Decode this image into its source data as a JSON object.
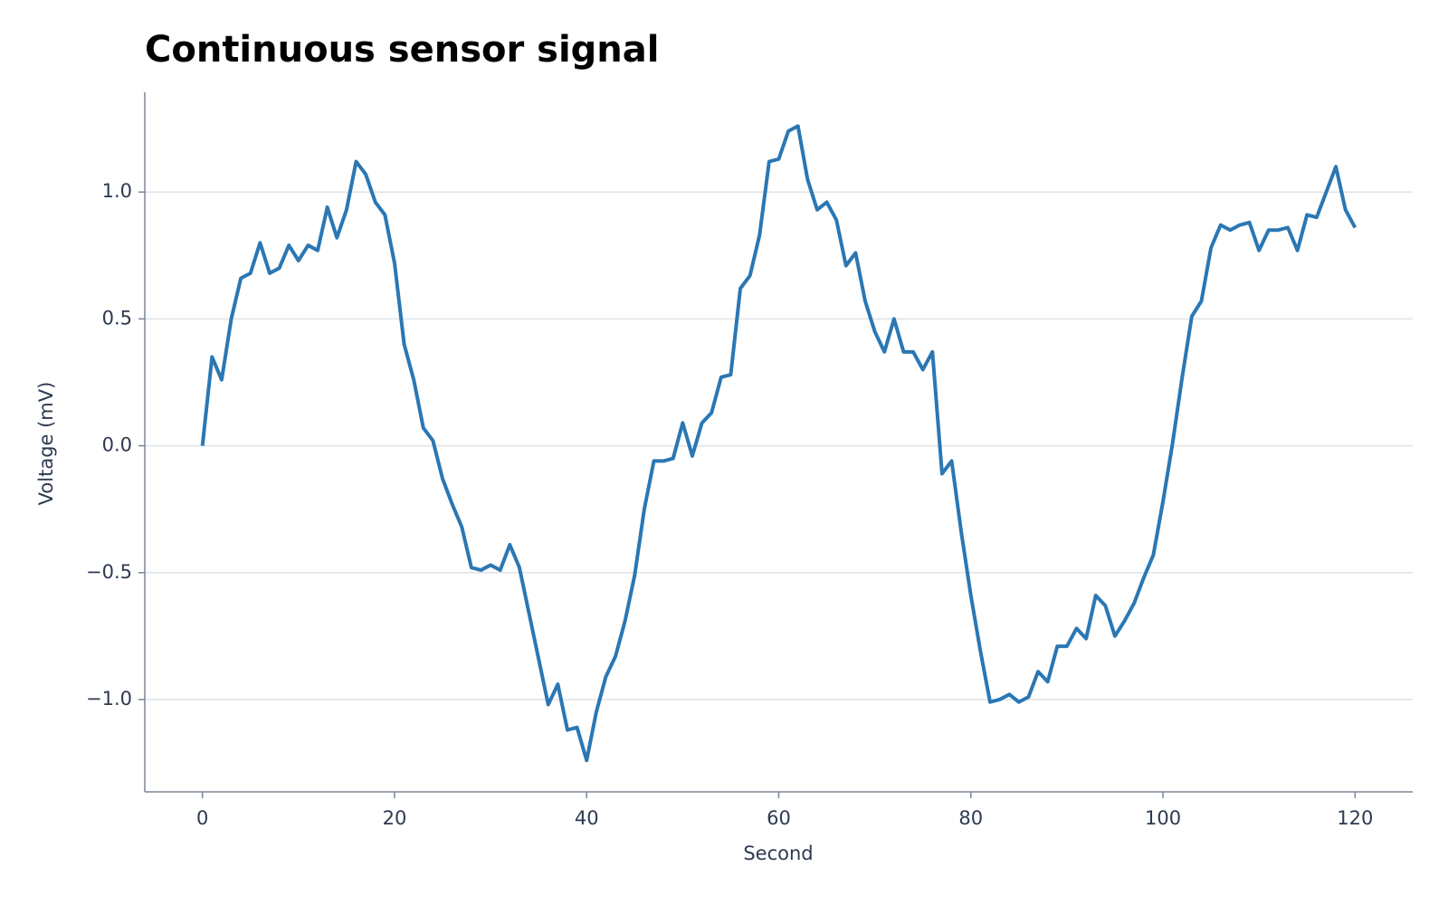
{
  "chart_data": {
    "type": "line",
    "title": "Continuous sensor signal",
    "x_label": "Second",
    "y_label": "Voltage (mV)",
    "x": [
      0,
      1,
      2,
      3,
      4,
      5,
      6,
      7,
      8,
      9,
      10,
      11,
      12,
      13,
      14,
      15,
      16,
      17,
      18,
      19,
      20,
      21,
      22,
      23,
      24,
      25,
      26,
      27,
      28,
      29,
      30,
      31,
      32,
      33,
      34,
      35,
      36,
      37,
      38,
      39,
      40,
      41,
      42,
      43,
      44,
      45,
      46,
      47,
      48,
      49,
      50,
      51,
      52,
      53,
      54,
      55,
      56,
      57,
      58,
      59,
      60,
      61,
      62,
      63,
      64,
      65,
      66,
      67,
      68,
      69,
      70,
      71,
      72,
      73,
      74,
      75,
      76,
      77,
      78,
      79,
      80,
      81,
      82,
      83,
      84,
      85,
      86,
      87,
      88,
      89,
      90,
      91,
      92,
      93,
      94,
      95,
      96,
      97,
      98,
      99,
      100,
      101,
      102,
      103,
      104,
      105,
      106,
      107,
      108,
      109,
      110,
      111,
      112,
      113,
      114,
      115,
      116,
      117,
      118,
      119,
      120
    ],
    "series": [
      {
        "color": "#2a77b4",
        "values": [
          0.0,
          0.35,
          0.26,
          0.5,
          0.66,
          0.68,
          0.8,
          0.68,
          0.7,
          0.79,
          0.73,
          0.79,
          0.77,
          0.94,
          0.82,
          0.93,
          1.12,
          1.07,
          0.96,
          0.91,
          0.72,
          0.4,
          0.26,
          0.07,
          0.02,
          -0.13,
          -0.23,
          -0.32,
          -0.48,
          -0.49,
          -0.47,
          -0.49,
          -0.39,
          -0.48,
          -0.66,
          -0.84,
          -1.02,
          -0.94,
          -1.12,
          -1.11,
          -1.24,
          -1.05,
          -0.91,
          -0.83,
          -0.69,
          -0.51,
          -0.25,
          -0.06,
          -0.06,
          -0.05,
          0.09,
          -0.04,
          0.09,
          0.13,
          0.27,
          0.28,
          0.62,
          0.67,
          0.83,
          1.12,
          1.13,
          1.24,
          1.26,
          1.05,
          0.93,
          0.96,
          0.89,
          0.71,
          0.76,
          0.57,
          0.45,
          0.37,
          0.5,
          0.37,
          0.37,
          0.3,
          0.37,
          -0.11,
          -0.06,
          -0.34,
          -0.59,
          -0.81,
          -1.01,
          -1.0,
          -0.98,
          -1.01,
          -0.99,
          -0.89,
          -0.93,
          -0.79,
          -0.79,
          -0.72,
          -0.76,
          -0.59,
          -0.63,
          -0.75,
          -0.69,
          -0.62,
          -0.52,
          -0.43,
          -0.22,
          0.01,
          0.27,
          0.51,
          0.57,
          0.78,
          0.87,
          0.85,
          0.87,
          0.88,
          0.77,
          0.85,
          0.85,
          0.86,
          0.77,
          0.91,
          0.9,
          1.0,
          1.1,
          0.93,
          0.86
        ]
      }
    ],
    "xlim": [
      -6,
      126
    ],
    "ylim": [
      -1.364,
      1.393
    ],
    "xticks": [
      0,
      20,
      40,
      60,
      80,
      100,
      120
    ],
    "yticks": [
      {
        "value": -1.0,
        "label": "−1.0"
      },
      {
        "value": -0.5,
        "label": "−0.5"
      },
      {
        "value": 0.0,
        "label": "0.0"
      },
      {
        "value": 0.5,
        "label": "0.5"
      },
      {
        "value": 1.0,
        "label": "1.0"
      }
    ],
    "grid": true
  }
}
